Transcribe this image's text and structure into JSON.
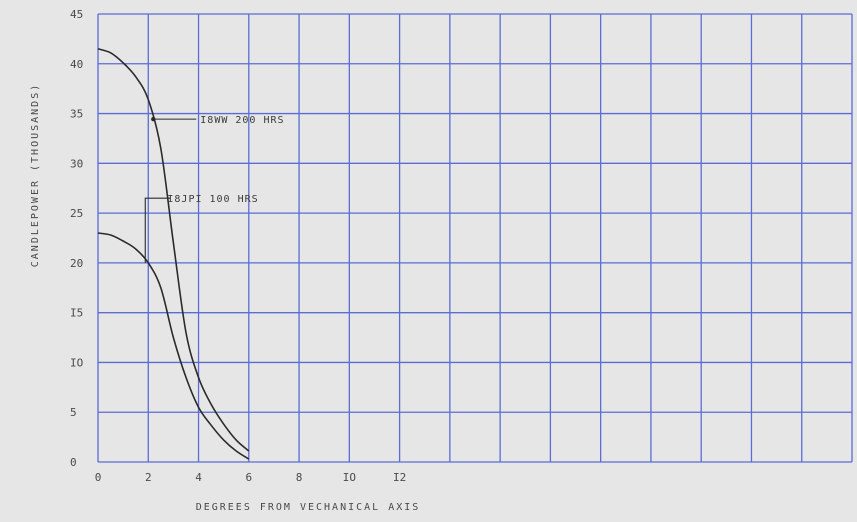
{
  "chart_data": {
    "type": "line",
    "title": "",
    "xlabel": "DEGREES FROM VECHANICAL AXIS",
    "ylabel": "CANDLEPOWER (THOUSANDS)",
    "xlim": [
      0,
      30
    ],
    "ylim": [
      0,
      45
    ],
    "x_tick_values": [
      0,
      2,
      4,
      6,
      8,
      10,
      12
    ],
    "x_tick_labels": [
      "0",
      "2",
      "4",
      "6",
      "8",
      "IO",
      "I2"
    ],
    "y_tick_values": [
      0,
      5,
      10,
      15,
      20,
      25,
      30,
      35,
      40,
      45
    ],
    "y_tick_labels": [
      "0",
      "5",
      "IO",
      "I5",
      "20",
      "25",
      "30",
      "35",
      "40",
      "45"
    ],
    "grid": true,
    "series": [
      {
        "name": "I8WW 200 HRS",
        "x": [
          0,
          0.5,
          1,
          1.5,
          2,
          2.5,
          3,
          3.5,
          4,
          4.5,
          5,
          5.5,
          6
        ],
        "y": [
          41.5,
          41.1,
          40.1,
          38.7,
          36.4,
          31.5,
          22,
          13,
          8.5,
          5.8,
          3.8,
          2.2,
          1.1
        ]
      },
      {
        "name": "I8JPI 100 HRS",
        "x": [
          0,
          0.5,
          1,
          1.5,
          2,
          2.5,
          3,
          3.5,
          4,
          4.5,
          5,
          5.5,
          6
        ],
        "y": [
          23,
          22.8,
          22.2,
          21.4,
          20,
          17.5,
          12.5,
          8.5,
          5.5,
          3.7,
          2.2,
          1.1,
          0.3
        ]
      }
    ],
    "annotations": [
      {
        "text": "I8WW 200 HRS",
        "series": 0,
        "x": 2.2
      },
      {
        "text": "I8JPI 100 HRS",
        "series": 1,
        "x": 2.0
      }
    ],
    "colors": {
      "background": "#e6e6e6",
      "grid": "#5b6cd6",
      "curve": "#2b2b2b",
      "text": "#4a4a4a"
    }
  }
}
